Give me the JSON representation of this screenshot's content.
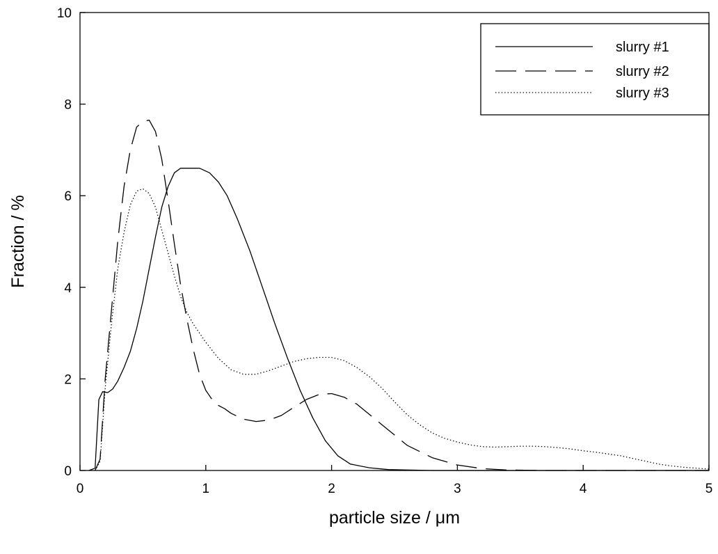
{
  "chart_data": {
    "type": "line",
    "title": "",
    "xlabel": "particle size / μm",
    "ylabel": "Fraction / %",
    "xlim": [
      0,
      5
    ],
    "ylim": [
      0,
      10
    ],
    "xticks": [
      0,
      1,
      2,
      3,
      4,
      5
    ],
    "yticks": [
      0,
      2,
      4,
      6,
      8,
      10
    ],
    "grid": false,
    "legend_position": "top-right",
    "series": [
      {
        "name": "slurry #1",
        "dash": "solid",
        "x": [
          0.07,
          0.12,
          0.15,
          0.18,
          0.22,
          0.26,
          0.3,
          0.35,
          0.4,
          0.45,
          0.5,
          0.55,
          0.6,
          0.65,
          0.7,
          0.75,
          0.8,
          0.88,
          0.95,
          1.03,
          1.1,
          1.17,
          1.25,
          1.35,
          1.45,
          1.55,
          1.65,
          1.75,
          1.85,
          1.95,
          2.05,
          2.15,
          2.3,
          2.45,
          2.6,
          2.8,
          3.0,
          3.5,
          4.0,
          4.5,
          5.0
        ],
        "y": [
          0.0,
          0.05,
          1.55,
          1.72,
          1.7,
          1.78,
          1.95,
          2.25,
          2.6,
          3.1,
          3.7,
          4.4,
          5.1,
          5.75,
          6.2,
          6.5,
          6.6,
          6.6,
          6.6,
          6.5,
          6.3,
          6.0,
          5.5,
          4.8,
          4.0,
          3.2,
          2.45,
          1.75,
          1.15,
          0.65,
          0.32,
          0.14,
          0.06,
          0.02,
          0.01,
          0.0,
          0.0,
          0.0,
          0.0,
          0.0,
          0.0
        ]
      },
      {
        "name": "slurry #2",
        "dash": "long-dash",
        "x": [
          0.12,
          0.16,
          0.2,
          0.25,
          0.3,
          0.35,
          0.4,
          0.45,
          0.5,
          0.55,
          0.6,
          0.65,
          0.7,
          0.75,
          0.8,
          0.85,
          0.9,
          0.95,
          1.0,
          1.05,
          1.1,
          1.15,
          1.2,
          1.3,
          1.4,
          1.5,
          1.6,
          1.7,
          1.8,
          1.9,
          2.0,
          2.1,
          2.2,
          2.4,
          2.6,
          2.8,
          3.0,
          3.2,
          3.4,
          3.7,
          4.0,
          5.0
        ],
        "y": [
          0.0,
          0.25,
          2.0,
          3.5,
          5.0,
          6.2,
          7.0,
          7.5,
          7.62,
          7.65,
          7.4,
          6.8,
          5.9,
          4.95,
          4.05,
          3.3,
          2.65,
          2.1,
          1.75,
          1.55,
          1.42,
          1.35,
          1.25,
          1.12,
          1.07,
          1.1,
          1.2,
          1.38,
          1.55,
          1.66,
          1.68,
          1.6,
          1.45,
          1.0,
          0.55,
          0.28,
          0.12,
          0.04,
          0.01,
          0.0,
          0.0,
          0.0
        ]
      },
      {
        "name": "slurry #3",
        "dash": "dotted",
        "x": [
          0.12,
          0.16,
          0.2,
          0.25,
          0.3,
          0.35,
          0.4,
          0.45,
          0.5,
          0.55,
          0.6,
          0.65,
          0.7,
          0.75,
          0.8,
          0.85,
          0.9,
          1.0,
          1.1,
          1.2,
          1.3,
          1.4,
          1.5,
          1.6,
          1.7,
          1.8,
          1.9,
          2.0,
          2.1,
          2.2,
          2.3,
          2.4,
          2.5,
          2.6,
          2.7,
          2.8,
          2.9,
          3.0,
          3.1,
          3.2,
          3.3,
          3.4,
          3.5,
          3.6,
          3.7,
          3.8,
          3.9,
          4.0,
          4.1,
          4.2,
          4.3,
          4.4,
          4.5,
          4.6,
          4.7,
          4.8,
          4.9,
          5.0
        ],
        "y": [
          0.0,
          0.2,
          1.8,
          3.2,
          4.4,
          5.2,
          5.8,
          6.1,
          6.15,
          6.05,
          5.75,
          5.25,
          4.75,
          4.25,
          3.8,
          3.45,
          3.2,
          2.8,
          2.45,
          2.2,
          2.1,
          2.1,
          2.18,
          2.28,
          2.38,
          2.44,
          2.47,
          2.47,
          2.4,
          2.25,
          2.05,
          1.8,
          1.5,
          1.22,
          1.0,
          0.82,
          0.7,
          0.62,
          0.56,
          0.52,
          0.51,
          0.52,
          0.53,
          0.53,
          0.52,
          0.5,
          0.47,
          0.43,
          0.4,
          0.36,
          0.32,
          0.26,
          0.2,
          0.14,
          0.1,
          0.07,
          0.05,
          0.03
        ]
      }
    ]
  }
}
